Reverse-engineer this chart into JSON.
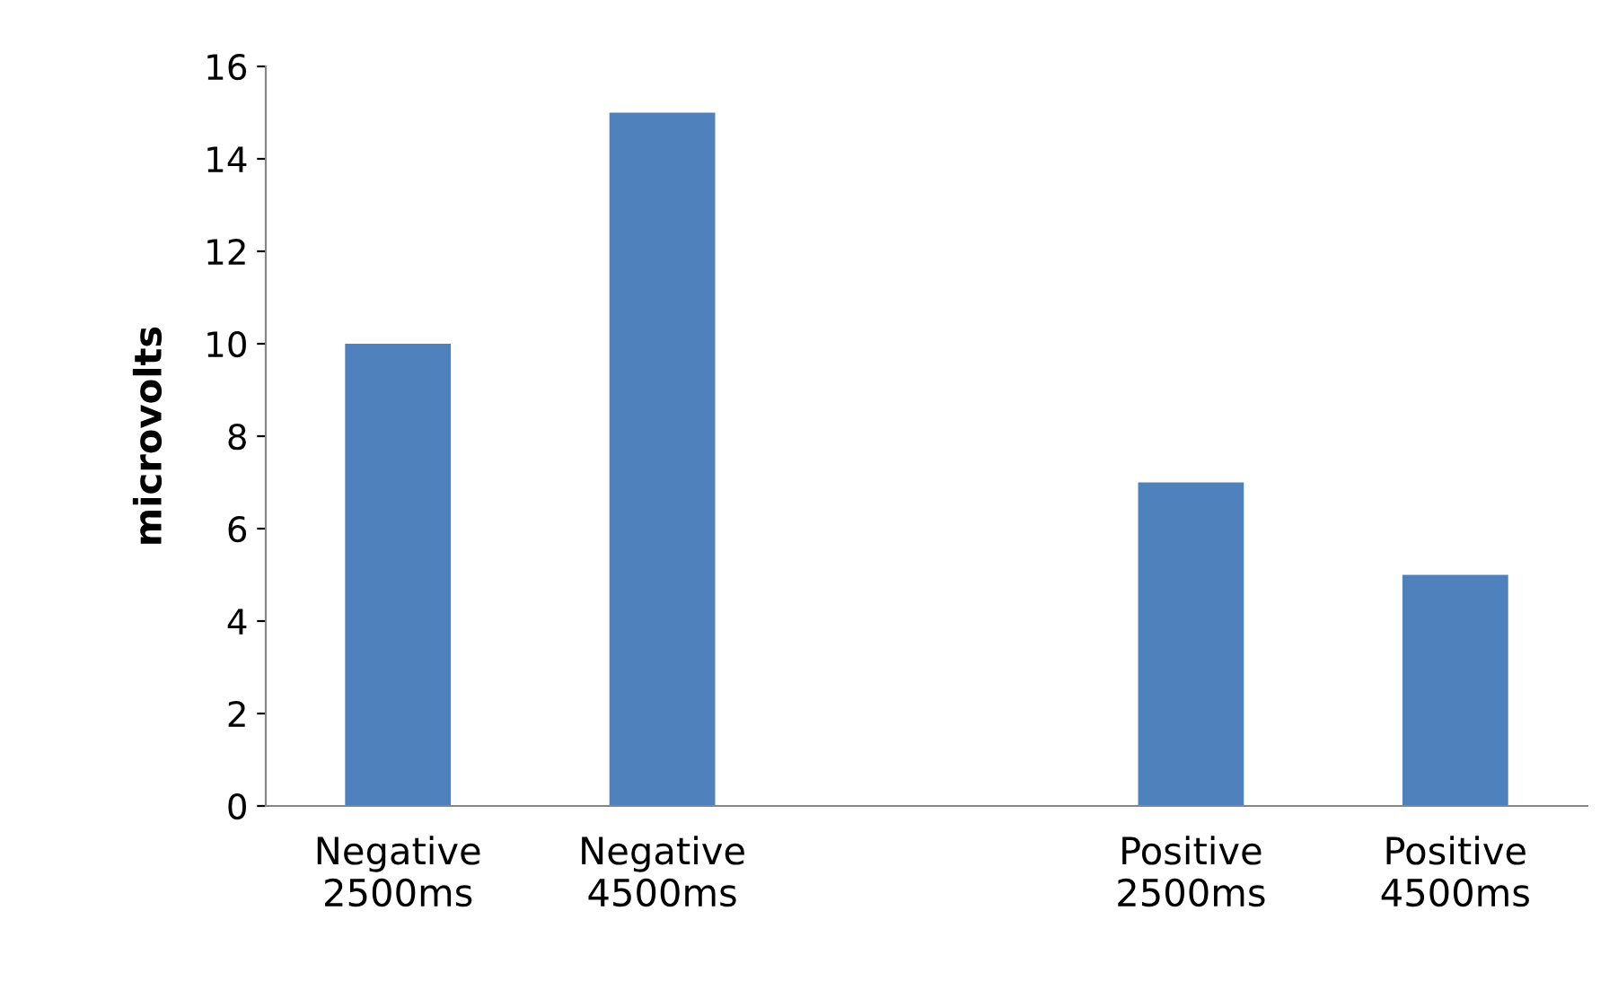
{
  "chart_data": {
    "type": "bar",
    "ylabel": "microvolts",
    "categories": [
      "Negative\n2500ms",
      "Negative\n4500ms",
      null,
      "Positive\n2500ms",
      "Positive\n4500ms"
    ],
    "values": [
      10,
      15,
      null,
      7,
      5
    ],
    "color": "#4f81bd",
    "ylim": [
      0,
      16
    ],
    "yticks": [
      0,
      2,
      4,
      6,
      8,
      10,
      12,
      14,
      16
    ],
    "grid": false,
    "legend": false
  }
}
